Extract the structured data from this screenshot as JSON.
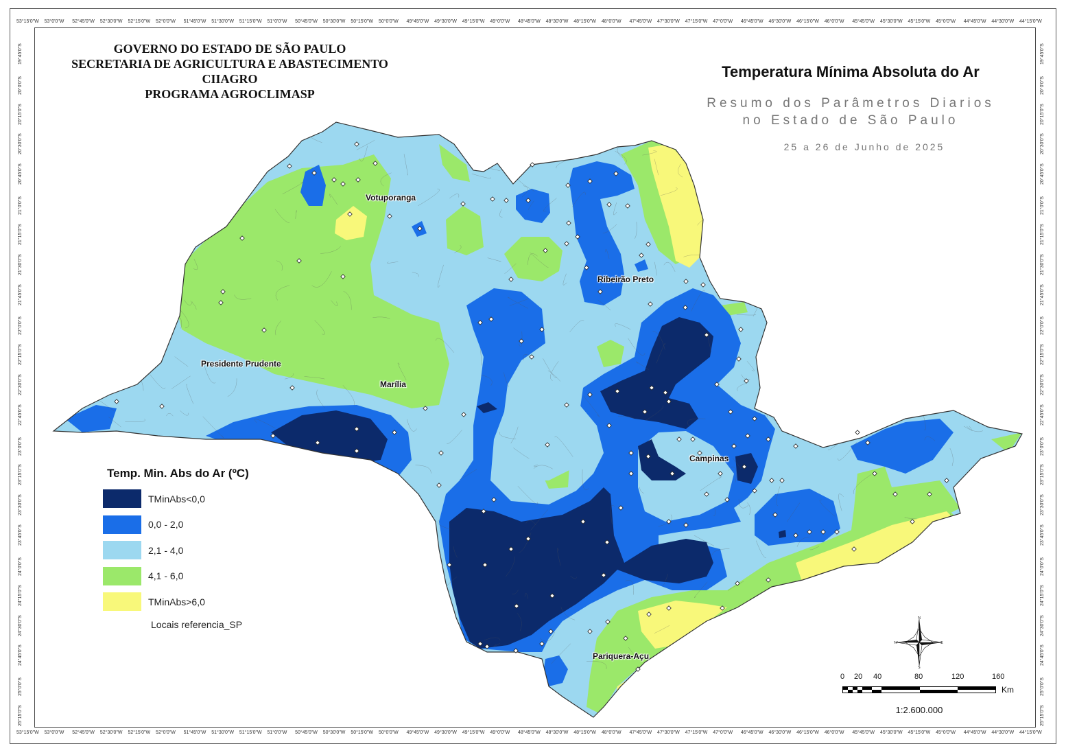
{
  "header": {
    "line1": "GOVERNO DO ESTADO DE SÃO PAULO",
    "line2": "SECRETARIA DE AGRICULTURA E ABASTECIMENTO",
    "line3": "CIIAGRO",
    "line4": "PROGRAMA AGROCLIMASP"
  },
  "title": "Temperatura Mínima Absoluta do Ar",
  "subtitle_line1": "Resumo dos Parâmetros Diarios",
  "subtitle_line2": "no Estado de São Paulo",
  "period": "25 a 26 de Junho de 2025",
  "cities": {
    "votuporanga": "Votuporanga",
    "ribeirao_preto": "Ribeirão Preto",
    "presidente_prudente": "Presidente Prudente",
    "marilia": "Marília",
    "campinas": "Campinas",
    "pariquera_acu": "Pariquera-Açu"
  },
  "legend": {
    "title": "Temp. Min. Abs do Ar (ºC)",
    "classes": [
      {
        "label": "TMinAbs<0,0",
        "color": "#0c2a6b"
      },
      {
        "label": "0,0 - 2,0",
        "color": "#1a6ee8"
      },
      {
        "label": "2,1 - 4,0",
        "color": "#9cd8f0"
      },
      {
        "label": "4,1 - 6,0",
        "color": "#9be86a"
      },
      {
        "label": "TMinAbs>6,0",
        "color": "#f8f87a"
      }
    ],
    "points_label": "Locais referencia_SP"
  },
  "scale": {
    "ticks": [
      "0",
      "20",
      "40",
      "80",
      "120",
      "160"
    ],
    "unit": "Km",
    "ratio": "1:2.600.000"
  },
  "compass": {
    "n": "N",
    "s": "S",
    "e": "E",
    "w": "W"
  },
  "graticule": {
    "top_labels": [
      "53°15'0\"W",
      "53°0'0\"W",
      "52°45'0\"W",
      "52°30'0\"W",
      "52°15'0\"W",
      "52°0'0\"W",
      "51°45'0\"W",
      "51°30'0\"W",
      "51°15'0\"W",
      "51°0'0\"W",
      "50°45'0\"W",
      "50°30'0\"W",
      "50°15'0\"W",
      "50°0'0\"W",
      "49°45'0\"W",
      "49°30'0\"W",
      "49°15'0\"W",
      "49°0'0\"W",
      "48°45'0\"W",
      "48°30'0\"W",
      "48°15'0\"W",
      "48°0'0\"W",
      "47°45'0\"W",
      "47°30'0\"W",
      "47°15'0\"W",
      "47°0'0\"W",
      "46°45'0\"W",
      "46°30'0\"W",
      "46°15'0\"W",
      "46°0'0\"W",
      "45°45'0\"W",
      "45°30'0\"W",
      "45°15'0\"W",
      "45°0'0\"W",
      "44°45'0\"W",
      "44°30'0\"W",
      "44°15'0\"W"
    ],
    "side_labels": [
      "19°45'0\"S",
      "20°0'0\"S",
      "20°15'0\"S",
      "20°30'0\"S",
      "20°45'0\"S",
      "21°0'0\"S",
      "21°15'0\"S",
      "21°30'0\"S",
      "21°45'0\"S",
      "22°0'0\"S",
      "22°15'0\"S",
      "22°30'0\"S",
      "22°45'0\"S",
      "23°0'0\"S",
      "23°15'0\"S",
      "23°30'0\"S",
      "23°45'0\"S",
      "24°0'0\"S",
      "24°15'0\"S",
      "24°30'0\"S",
      "24°45'0\"S",
      "25°0'0\"S",
      "25°15'0\"S"
    ]
  }
}
